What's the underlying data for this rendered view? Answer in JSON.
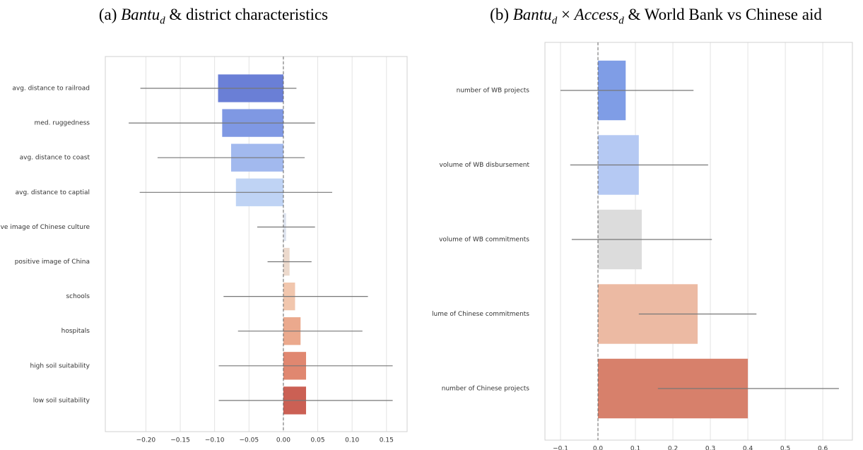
{
  "chart_data": [
    {
      "type": "bar",
      "orientation": "horizontal",
      "title": [
        "(a) ",
        "Bantu",
        "d",
        " & district characteristics"
      ],
      "categories": [
        "avg. distance to railroad",
        "med. ruggedness",
        "avg. distance to coast",
        "avg. distance to captial",
        "positive image of Chinese culture",
        "positive image of China",
        "schools",
        "hospitals",
        "high soil suitability",
        "low soil suitability"
      ],
      "values": [
        -0.095,
        -0.089,
        -0.076,
        -0.069,
        0.004,
        0.009,
        0.017,
        0.025,
        0.033,
        0.033
      ],
      "lower": [
        -0.208,
        -0.225,
        -0.183,
        -0.209,
        -0.038,
        -0.023,
        -0.087,
        -0.066,
        -0.094,
        -0.094
      ],
      "upper": [
        0.019,
        0.046,
        0.031,
        0.071,
        0.046,
        0.041,
        0.123,
        0.115,
        0.159,
        0.159
      ],
      "colors": [
        "#6a7fd6",
        "#7f98e3",
        "#a2b9ee",
        "#bfd3f4",
        "#dde3ee",
        "#ecd9cc",
        "#f1c6ad",
        "#eba98d",
        "#e08770",
        "#cb6054"
      ],
      "error_color": "#777777",
      "xlim": [
        -0.259,
        0.18
      ],
      "xticks": [
        {
          "value": -0.2,
          "label": "−0.20"
        },
        {
          "value": -0.15,
          "label": "−0.15"
        },
        {
          "value": -0.1,
          "label": "−0.10"
        },
        {
          "value": -0.05,
          "label": "−0.05"
        },
        {
          "value": 0,
          "label": "0.00"
        },
        {
          "value": 0.05,
          "label": "0.05"
        },
        {
          "value": 0.1,
          "label": "0.10"
        },
        {
          "value": 0.15,
          "label": "0.15"
        }
      ],
      "grid": true
    },
    {
      "type": "bar",
      "orientation": "horizontal",
      "title": [
        "(b) ",
        "Bantu",
        "d",
        " × ",
        "Access",
        "d",
        " & World Bank vs Chinese aid"
      ],
      "categories": [
        "number of WB projects",
        "volume of WB disbursement",
        "volume of WB commitments",
        "lume of Chinese commitments",
        "number of Chinese projects"
      ],
      "values": [
        0.074,
        0.109,
        0.117,
        0.266,
        0.4
      ],
      "lower": [
        -0.1,
        -0.074,
        -0.07,
        0.109,
        0.16
      ],
      "upper": [
        0.255,
        0.294,
        0.304,
        0.423,
        0.643
      ],
      "colors": [
        "#7f9de6",
        "#b5c9f3",
        "#dcdcdc",
        "#ecbaa3",
        "#d7806b"
      ],
      "error_color": "#777777",
      "xlim": [
        -0.1415,
        0.679
      ],
      "xticks": [
        {
          "value": -0.1,
          "label": "−0.1"
        },
        {
          "value": 0,
          "label": "0.0"
        },
        {
          "value": 0.1,
          "label": "0.1"
        },
        {
          "value": 0.2,
          "label": "0.2"
        },
        {
          "value": 0.3,
          "label": "0.3"
        },
        {
          "value": 0.4,
          "label": "0.4"
        },
        {
          "value": 0.5,
          "label": "0.5"
        },
        {
          "value": 0.6,
          "label": "0.6"
        }
      ],
      "grid": true
    }
  ]
}
